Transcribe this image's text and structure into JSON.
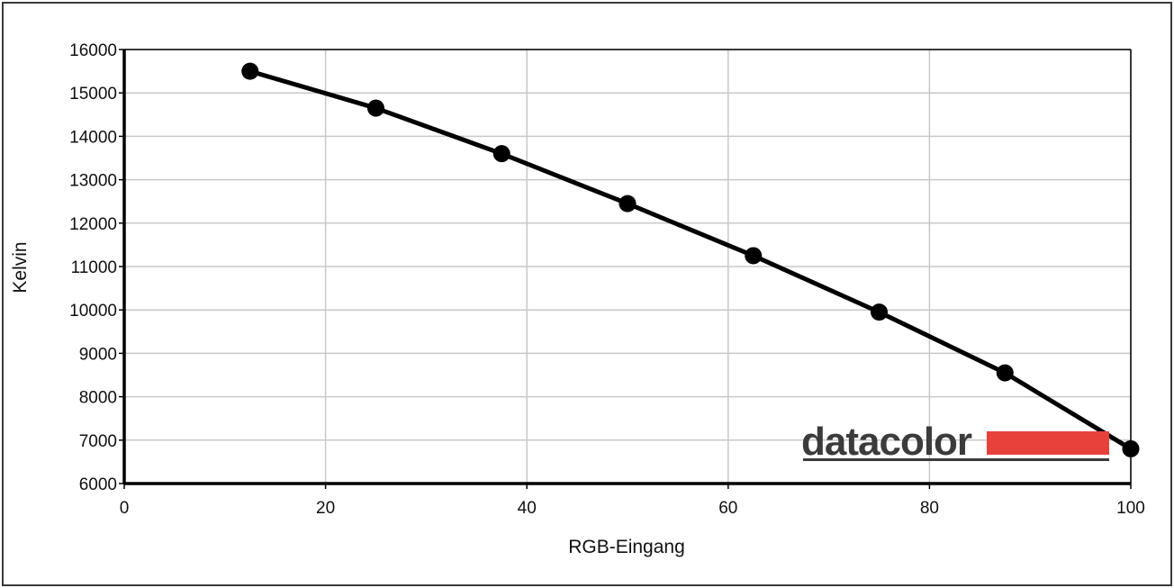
{
  "chart_data": {
    "type": "line",
    "title": "",
    "xlabel": "RGB-Eingang",
    "ylabel": "Kelvin",
    "xlim": [
      0,
      100
    ],
    "ylim": [
      6000,
      16000
    ],
    "x_ticks": [
      0,
      20,
      40,
      60,
      80,
      100
    ],
    "y_ticks": [
      6000,
      7000,
      8000,
      9000,
      10000,
      11000,
      12000,
      13000,
      14000,
      15000,
      16000
    ],
    "grid": true,
    "series": [
      {
        "x": [
          12.5,
          25,
          37.5,
          50,
          62.5,
          75,
          87.5,
          100
        ],
        "y": [
          15500,
          14650,
          13600,
          12450,
          11250,
          9950,
          8550,
          6800
        ],
        "color": "#000000",
        "marker": "circle"
      }
    ]
  },
  "logo": {
    "text": "datacolor",
    "bar_color": "#e8413c",
    "text_color": "#3b3b3b"
  }
}
